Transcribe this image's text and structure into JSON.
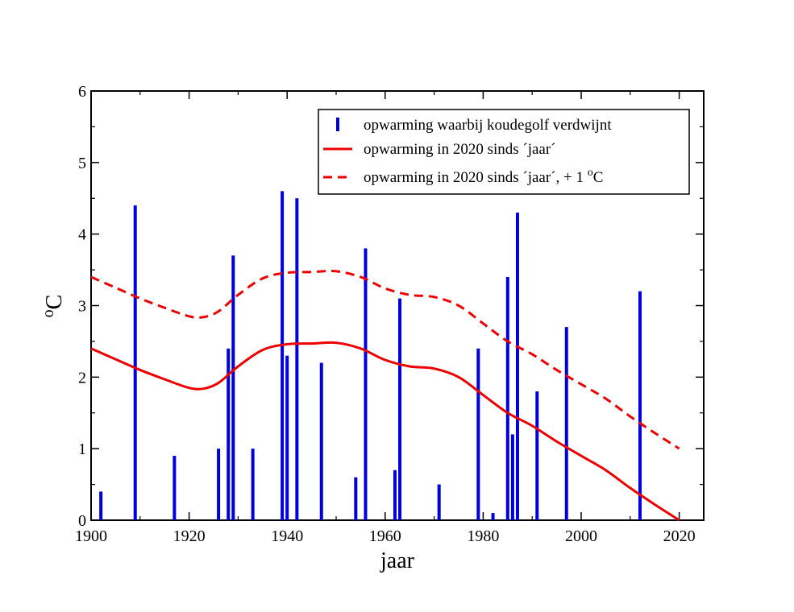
{
  "chart_data": {
    "type": "bar",
    "title": "",
    "xlabel": "jaar",
    "ylabel_sup": "o",
    "ylabel_main": "C",
    "xlim": [
      1900,
      2025
    ],
    "ylim": [
      0,
      6
    ],
    "xticks": [
      1900,
      1920,
      1940,
      1960,
      1980,
      2000,
      2020
    ],
    "yticks": [
      0,
      1,
      2,
      3,
      4,
      5,
      6
    ],
    "grid": false,
    "legend_position": "top-right",
    "colors": {
      "bars": "#0000dd",
      "lines": "#ee0000"
    },
    "series": [
      {
        "name": "opwarming waarbij koudegolf verdwijnt",
        "kind": "bar",
        "x": [
          1902,
          1909,
          1917,
          1926,
          1928,
          1929,
          1933,
          1939,
          1940,
          1942,
          1947,
          1954,
          1956,
          1962,
          1963,
          1971,
          1979,
          1982,
          1985,
          1986,
          1987,
          1991,
          1997,
          2012
        ],
        "values": [
          0.4,
          4.4,
          0.9,
          1.0,
          2.4,
          3.7,
          1.0,
          4.6,
          2.3,
          4.5,
          2.2,
          0.6,
          3.8,
          0.7,
          3.1,
          0.5,
          2.4,
          0.1,
          3.4,
          1.2,
          4.3,
          1.8,
          2.7,
          3.2
        ]
      },
      {
        "name": "opwarming in 2020 sinds ´jaar´",
        "kind": "line",
        "style": "solid",
        "x": [
          1900,
          1905,
          1910,
          1915,
          1920,
          1923,
          1926,
          1930,
          1935,
          1940,
          1945,
          1950,
          1955,
          1960,
          1965,
          1970,
          1975,
          1980,
          1985,
          1990,
          1995,
          2000,
          2005,
          2010,
          2015,
          2020
        ],
        "values": [
          2.4,
          2.25,
          2.1,
          1.97,
          1.85,
          1.84,
          1.92,
          2.15,
          2.38,
          2.46,
          2.47,
          2.48,
          2.4,
          2.24,
          2.15,
          2.12,
          2.0,
          1.75,
          1.5,
          1.32,
          1.1,
          0.9,
          0.7,
          0.45,
          0.22,
          0.0
        ]
      },
      {
        "name": "opwarming in 2020 sinds ´jaar´, + 1 oC",
        "kind": "line",
        "style": "dashed",
        "x": [
          1900,
          1905,
          1910,
          1915,
          1920,
          1923,
          1926,
          1930,
          1935,
          1940,
          1945,
          1950,
          1955,
          1960,
          1965,
          1970,
          1975,
          1980,
          1985,
          1990,
          1995,
          2000,
          2005,
          2010,
          2015,
          2020
        ],
        "values": [
          3.4,
          3.25,
          3.1,
          2.97,
          2.85,
          2.84,
          2.92,
          3.15,
          3.38,
          3.46,
          3.47,
          3.48,
          3.4,
          3.24,
          3.15,
          3.12,
          3.0,
          2.75,
          2.5,
          2.32,
          2.1,
          1.9,
          1.7,
          1.45,
          1.22,
          1.0
        ]
      }
    ],
    "legend": {
      "bar_label": "opwarming waarbij koudegolf verdwijnt",
      "solid_label": "opwarming in 2020 sinds ´jaar´",
      "dashed_label": "opwarming in 2020 sinds ´jaar´, + 1 ",
      "dashed_label_sup": "o",
      "dashed_label_unit": "C"
    }
  }
}
